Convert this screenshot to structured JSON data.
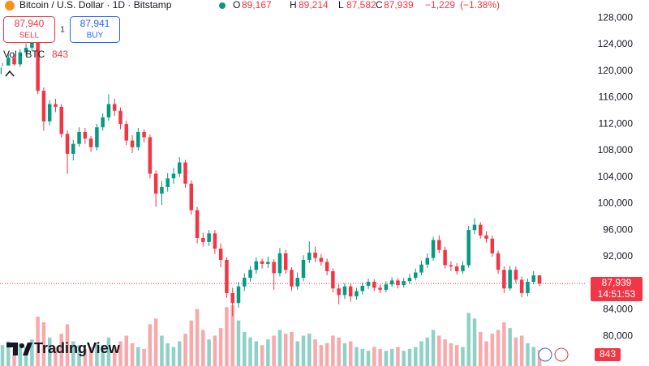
{
  "chart_data": {
    "type": "candlestick",
    "header": {
      "symbol": "Bitcoin / U.S. Dollar · 1D · Bitstamp",
      "open_letter": "O",
      "open": {
        "value": 89167,
        "label": "89,167"
      },
      "high_letter": "H",
      "high": {
        "value": 89214,
        "label": "89,214"
      },
      "low_letter": "L",
      "low": {
        "value": 87582,
        "label": "87,582"
      },
      "close_letter": "C",
      "close": {
        "value": 87939,
        "label": "87,939"
      },
      "change": {
        "value": -1229,
        "label": "−1,229"
      },
      "change_pct": {
        "value": -1.38,
        "label": "(−1.38%)"
      }
    },
    "sell": {
      "price": {
        "value": 87940,
        "label": "87,940"
      },
      "label": "SELL"
    },
    "spread": 1,
    "buy": {
      "price": {
        "value": 87941,
        "label": "87,941"
      },
      "label": "BUY"
    },
    "volume_label": "Vol · BTC",
    "countdown": "14:51:53",
    "watermark": "TradingView",
    "up_color": "#089981",
    "down_color": "#f23645",
    "up_volume_color": "#8fd1c6",
    "down_volume_color": "#f7a9ab",
    "ylim": [
      75500,
      130700
    ],
    "yticks": [
      {
        "value": 80000,
        "label": "80,000"
      },
      {
        "value": 84000,
        "label": "84,000"
      },
      {
        "value": 88000,
        "label": "88,000"
      },
      {
        "value": 92000,
        "label": "92,000"
      },
      {
        "value": 96000,
        "label": "96,000"
      },
      {
        "value": 100000,
        "label": "100,000"
      },
      {
        "value": 104000,
        "label": "104,000"
      },
      {
        "value": 108000,
        "label": "108,000"
      },
      {
        "value": 112000,
        "label": "112,000"
      },
      {
        "value": 116000,
        "label": "116,000"
      },
      {
        "value": 120000,
        "label": "120,000"
      },
      {
        "value": 124000,
        "label": "124,000"
      },
      {
        "value": 128000,
        "label": "128,000"
      }
    ],
    "grid": false,
    "open": [
      119500,
      120500,
      122000,
      121000,
      122800,
      123500,
      124500,
      117000,
      112400,
      115000,
      114600,
      110500,
      107500,
      109000,
      110800,
      109800,
      108500,
      111500,
      113000,
      115000,
      114000,
      112000,
      109500,
      108500,
      110800,
      110000,
      104500,
      101500,
      102500,
      103800,
      104500,
      106200,
      103000,
      99000,
      94800,
      94200,
      95500,
      93200,
      91500,
      86500,
      85000,
      87500,
      88800,
      90000,
      91300,
      90900,
      91200,
      89500,
      92500,
      90000,
      87500,
      88800,
      91500,
      92600,
      91800,
      91200,
      89800,
      87200,
      86200,
      87500,
      86000,
      86800,
      87600,
      88200,
      87300,
      87000,
      87800,
      88400,
      87700,
      88300,
      88800,
      89600,
      90800,
      91800,
      94500,
      93000,
      90700,
      90500,
      89800,
      90700,
      96000,
      96800,
      95200,
      94700,
      92500,
      90000,
      87200,
      90000,
      88500,
      86500,
      88200,
      89167
    ],
    "high": [
      121200,
      122600,
      122500,
      123300,
      124200,
      125600,
      125000,
      117500,
      115600,
      115800,
      115000,
      111000,
      109600,
      111500,
      111400,
      110200,
      112000,
      113600,
      116500,
      115800,
      114500,
      112500,
      110300,
      111400,
      111200,
      110400,
      105000,
      103400,
      104600,
      105400,
      107000,
      106600,
      103500,
      99500,
      95600,
      96000,
      96000,
      94000,
      91900,
      87300,
      88200,
      89500,
      90600,
      91900,
      91700,
      92000,
      91600,
      93300,
      93000,
      90400,
      89600,
      92200,
      94300,
      93500,
      92400,
      91700,
      90200,
      87800,
      88000,
      87900,
      87300,
      88100,
      88700,
      88600,
      87800,
      88300,
      88900,
      88800,
      88800,
      89400,
      90200,
      91400,
      92500,
      95000,
      95200,
      93500,
      91300,
      91000,
      91300,
      96600,
      97800,
      97200,
      95800,
      95200,
      92900,
      90500,
      90600,
      90500,
      89000,
      88700,
      89800,
      89214
    ],
    "low": [
      118800,
      120000,
      120400,
      120600,
      122300,
      123000,
      116500,
      111000,
      111800,
      113800,
      110000,
      104500,
      106500,
      108600,
      109000,
      107800,
      108000,
      111000,
      112500,
      113200,
      111200,
      108800,
      107600,
      108000,
      109200,
      103800,
      99500,
      99800,
      101800,
      103000,
      104000,
      102400,
      98300,
      94000,
      93500,
      93600,
      92400,
      90400,
      85800,
      83000,
      84300,
      86800,
      88200,
      89400,
      90200,
      90300,
      87000,
      89000,
      89400,
      86800,
      87000,
      88300,
      91000,
      91200,
      90600,
      89200,
      86600,
      84800,
      85600,
      85200,
      85500,
      86300,
      87100,
      86800,
      86500,
      86600,
      87400,
      87200,
      87300,
      87900,
      88400,
      89200,
      90300,
      91400,
      92500,
      90200,
      89800,
      89300,
      89400,
      90300,
      95400,
      94700,
      94100,
      92000,
      89400,
      86500,
      86900,
      88000,
      85900,
      86000,
      87800,
      87582
    ],
    "close": [
      120500,
      122000,
      121000,
      122800,
      123500,
      124500,
      117000,
      112400,
      115000,
      114600,
      110500,
      107500,
      109000,
      110800,
      109800,
      108500,
      111500,
      113000,
      115000,
      114000,
      112000,
      109500,
      108500,
      110800,
      110000,
      104500,
      101500,
      102500,
      103800,
      104500,
      106200,
      103000,
      99000,
      94800,
      94200,
      95500,
      93200,
      91500,
      86500,
      85000,
      87500,
      88800,
      90000,
      91300,
      90900,
      91200,
      89500,
      92500,
      90000,
      87500,
      88800,
      91500,
      92600,
      91800,
      91200,
      89800,
      87200,
      86200,
      87500,
      86000,
      86800,
      87600,
      88200,
      87300,
      87000,
      87800,
      88400,
      87700,
      88300,
      88800,
      89600,
      90800,
      91800,
      94500,
      93000,
      90700,
      90500,
      89800,
      90700,
      96000,
      96800,
      95200,
      94700,
      92500,
      90000,
      87200,
      90000,
      88500,
      86500,
      88200,
      89167,
      87939
    ],
    "volume": [
      1100,
      1300,
      900,
      1200,
      1000,
      1400,
      2600,
      2300,
      1500,
      1000,
      1700,
      2200,
      1300,
      1100,
      900,
      1000,
      1200,
      1100,
      1500,
      1000,
      1300,
      1600,
      1200,
      1000,
      900,
      2200,
      2500,
      1600,
      1200,
      1000,
      1300,
      1700,
      2400,
      3000,
      1900,
      1400,
      1600,
      2000,
      3100,
      3200,
      2400,
      1800,
      1500,
      1300,
      1100,
      1400,
      1600,
      1900,
      1700,
      1800,
      1300,
      1600,
      1700,
      1400,
      1100,
      1200,
      1600,
      1500,
      1200,
      1300,
      1000,
      900,
      800,
      1000,
      900,
      800,
      900,
      1000,
      800,
      900,
      1000,
      1300,
      1500,
      1900,
      1600,
      1400,
      1200,
      1100,
      1000,
      2800,
      2500,
      1800,
      1300,
      1700,
      1900,
      2300,
      2000,
      1500,
      1600,
      1200,
      1000,
      843
    ]
  }
}
